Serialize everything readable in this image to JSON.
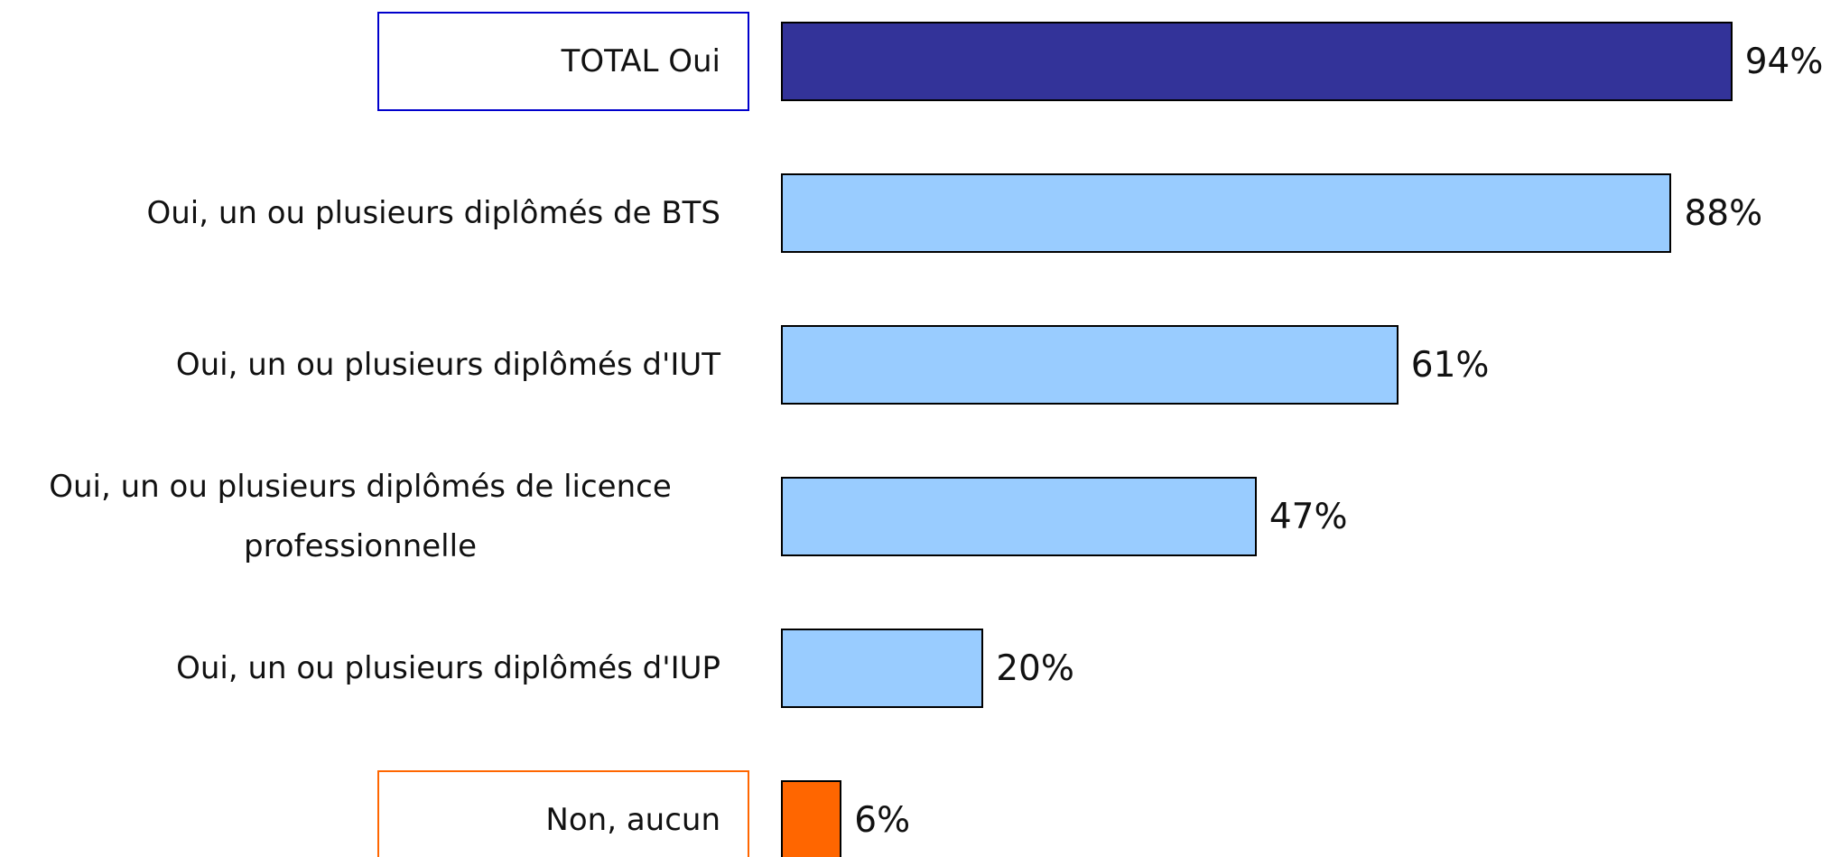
{
  "chart_data": {
    "type": "bar",
    "orientation": "horizontal",
    "categories": [
      "TOTAL Oui",
      "Oui, un ou plusieurs diplômés de BTS",
      "Oui, un ou plusieurs diplômés d'IUT",
      "Oui, un ou plusieurs diplômés de licence professionnelle",
      "Oui, un ou plusieurs diplômés d'IUP",
      "Non, aucun"
    ],
    "values": [
      94,
      88,
      61,
      47,
      20,
      6
    ],
    "value_labels": [
      "94%",
      "88%",
      "61%",
      "47%",
      "20%",
      "6%"
    ],
    "colors": [
      "#333399",
      "#99ccff",
      "#99ccff",
      "#99ccff",
      "#99ccff",
      "#ff6600"
    ],
    "label_borders": [
      "#0000cc",
      null,
      null,
      null,
      null,
      "#ff6600"
    ],
    "xlim": [
      0,
      100
    ]
  }
}
